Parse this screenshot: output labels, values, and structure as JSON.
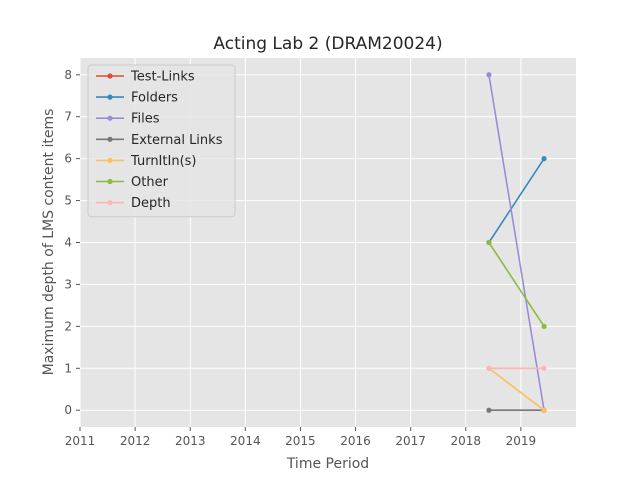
{
  "chart_data": {
    "type": "line",
    "title": "Acting Lab 2 (DRAM20024)",
    "xlabel": "Time Period",
    "ylabel": "Maximum depth of LMS content items",
    "xlim": [
      2011,
      2020
    ],
    "ylim": [
      -0.4,
      8.4
    ],
    "xticks": [
      2011,
      2012,
      2013,
      2014,
      2015,
      2016,
      2017,
      2018,
      2019
    ],
    "yticks": [
      0,
      1,
      2,
      3,
      4,
      5,
      6,
      7,
      8
    ],
    "grid": true,
    "legend_position": "top-left",
    "x": [
      2018.42,
      2019.42
    ],
    "series": [
      {
        "name": "Test-Links",
        "color": "#e24a33",
        "values": [
          null,
          null
        ]
      },
      {
        "name": "Folders",
        "color": "#348abd",
        "values": [
          4,
          6
        ]
      },
      {
        "name": "Files",
        "color": "#988ed5",
        "values": [
          8,
          0
        ]
      },
      {
        "name": "External Links",
        "color": "#777777",
        "values": [
          0,
          0
        ]
      },
      {
        "name": "TurnItIn(s)",
        "color": "#fbc15e",
        "values": [
          1,
          0
        ]
      },
      {
        "name": "Other",
        "color": "#8eba42",
        "values": [
          4,
          2
        ]
      },
      {
        "name": "Depth",
        "color": "#ffb5b8",
        "values": [
          1,
          1
        ]
      }
    ]
  }
}
